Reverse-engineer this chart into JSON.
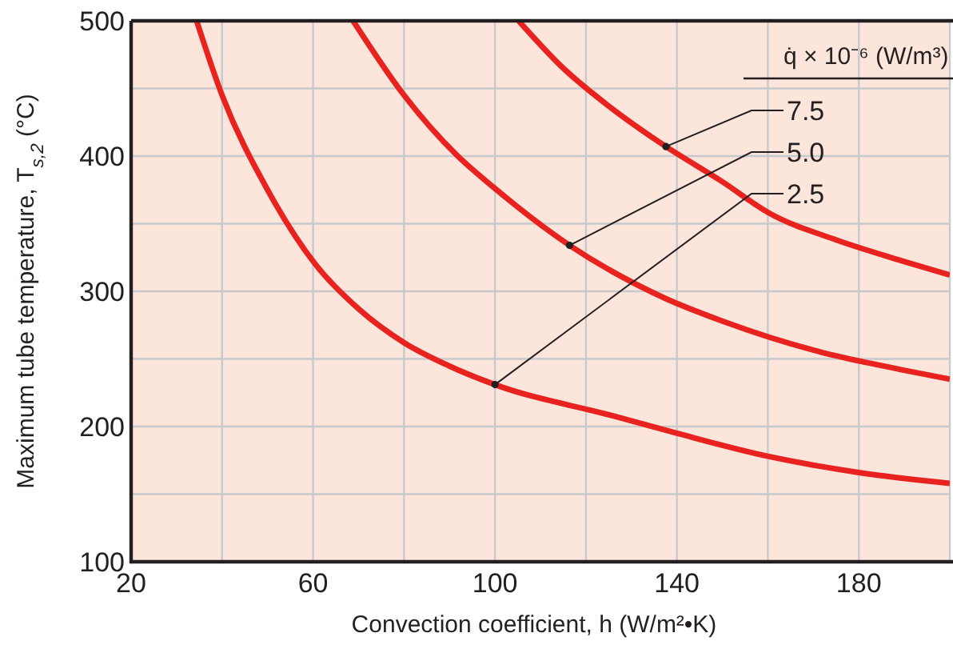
{
  "chart_data": {
    "type": "line",
    "xlabel": "Convection coefficient, h (W/m²•K)",
    "ylabel": "Maximum tube temperature, T$_{s,2}$ (°C)",
    "legend_title": "q̇ × 10⁻⁶ (W/m³)",
    "legend": "top right",
    "xlim": [
      20,
      200
    ],
    "ylim": [
      100,
      500
    ],
    "xticks": [
      20,
      {
        "value": 40,
        "label": null
      },
      60,
      {
        "value": 80,
        "label": null
      },
      100,
      {
        "value": 120,
        "label": null
      },
      140,
      {
        "value": 160,
        "label": null
      },
      180,
      {
        "value": 200,
        "label": null
      }
    ],
    "yticks": [
      100,
      {
        "value": 150,
        "label": null
      },
      200,
      {
        "value": 250,
        "label": null
      },
      300,
      {
        "value": 350,
        "label": null
      },
      400,
      {
        "value": 450,
        "label": null
      },
      500
    ],
    "grid": true,
    "marker": "none",
    "line_style": "solid",
    "series": [
      {
        "name": "7.5",
        "color": "#e8231f",
        "x": [
          105.2,
          115,
          125,
          137.6,
          150,
          160.2,
          175,
          190,
          200
        ],
        "values": [
          500,
          465,
          437,
          407,
          381,
          358,
          338,
          322,
          312
        ]
      },
      {
        "name": "5.0",
        "color": "#e8231f",
        "x": [
          68.8,
          80,
          91.5,
          100,
          116.4,
          137.3,
          150,
          171.7,
          185,
          200
        ],
        "values": [
          500,
          445,
          401,
          376,
          334,
          295,
          278,
          255,
          245,
          235
        ]
      },
      {
        "name": "2.5",
        "color": "#e8231f",
        "x": [
          34.4,
          40,
          50,
          60.5,
          70,
          80,
          89.8,
          100,
          125.8,
          140,
          160,
          180,
          200
        ],
        "values": [
          500,
          445,
          375,
          320,
          287,
          262,
          245,
          231,
          208,
          195,
          178,
          166,
          158
        ]
      }
    ]
  }
}
